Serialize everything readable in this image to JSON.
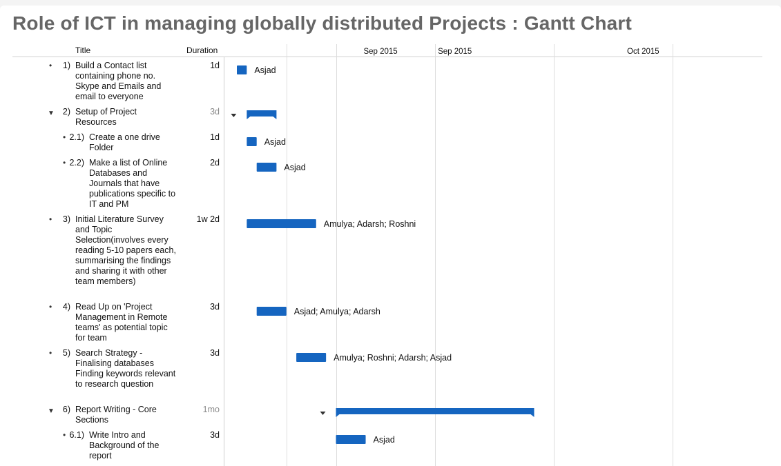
{
  "page_title": "Role of ICT in managing globally distributed Projects : Gantt Chart",
  "columns": {
    "title": "Title",
    "duration": "Duration"
  },
  "chart_data": {
    "type": "gantt",
    "time_axis": {
      "labels": [
        {
          "text": "Sep 2015",
          "x_day": 14.5
        },
        {
          "text": "Sep 2015",
          "x_day": 22
        },
        {
          "text": "Oct 2015",
          "x_day": 41
        }
      ],
      "gridlines_day": [
        5,
        10,
        20,
        32,
        44
      ],
      "highlight_day": 55.5
    },
    "tasks": [
      {
        "number": "1)",
        "title": "Build a Contact list containing phone no. Skype and Emails and email to everyone",
        "duration": "1d",
        "start": 0,
        "length": 1,
        "assignees": "Asjad",
        "summary": false,
        "level": 0
      },
      {
        "number": "2)",
        "title": "Setup of Project Resources",
        "duration": "3d",
        "start": 1,
        "length": 3,
        "assignees": "",
        "summary": true,
        "level": 0
      },
      {
        "number": "2.1)",
        "title": "Create a one drive Folder",
        "duration": "1d",
        "start": 1,
        "length": 1,
        "assignees": "Asjad",
        "summary": false,
        "level": 1
      },
      {
        "number": "2.2)",
        "title": "Make a list of Online Databases and Journals that have publications specific to IT and PM",
        "duration": "2d",
        "start": 2,
        "length": 2,
        "assignees": "Asjad",
        "summary": false,
        "level": 1
      },
      {
        "number": "3)",
        "title": "Initial Literature Survey and Topic Selection(involves every reading 5-10 papers each, summarising the findings and sharing it with other team members)",
        "duration": "1w 2d",
        "start": 1,
        "length": 7,
        "assignees": "Amulya; Adarsh; Roshni",
        "summary": false,
        "level": 0
      },
      {
        "number": "4)",
        "title": "Read Up on 'Project Management in Remote teams' as potential topic for team",
        "duration": "3d",
        "start": 2,
        "length": 3,
        "assignees": "Asjad; Amulya; Adarsh",
        "summary": false,
        "level": 0
      },
      {
        "number": "5)",
        "title": "Search Strategy  - Finalising databases Finding keywords relevant to research question",
        "duration": "3d",
        "start": 6,
        "length": 3,
        "assignees": "Amulya; Roshni; Adarsh; Asjad",
        "summary": false,
        "level": 0
      },
      {
        "number": "6)",
        "title": "Report Writing - Core Sections",
        "duration": "1mo",
        "start": 10,
        "length": 20,
        "assignees": "",
        "summary": true,
        "level": 0
      },
      {
        "number": "6.1)",
        "title": "Write Intro and Background of the report",
        "duration": "3d",
        "start": 10,
        "length": 3,
        "assignees": "Asjad",
        "summary": false,
        "level": 1
      }
    ]
  },
  "colors": {
    "bar": "#1565c0",
    "grid": "#dddddd",
    "highlight": "#eaf3fc",
    "muted": "#8a8a8a"
  }
}
